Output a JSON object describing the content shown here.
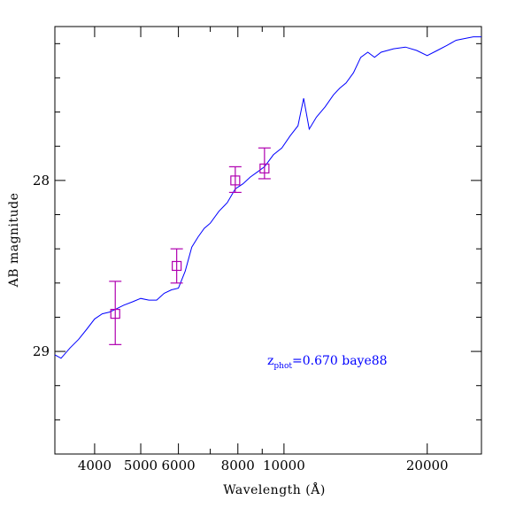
{
  "chart_data": {
    "type": "line",
    "xlabel": "Wavelength (Å)",
    "ylabel": "AB magnitude",
    "xscale": "log",
    "yaxis_inverted": true,
    "xlim": [
      3300,
      26000
    ],
    "ylim": [
      29.6,
      27.1
    ],
    "x_tick_labels": [
      "4000",
      "5000",
      "6000",
      "8000",
      "10000",
      "20000"
    ],
    "y_tick_labels": [
      "28",
      "29"
    ],
    "annotation": {
      "z_symbol": "z",
      "subscript": "phot",
      "text": "=0.670  baye88"
    },
    "grid": false,
    "legend": "none",
    "colors": {
      "template": "#0000ff",
      "photometry": "#b000b0",
      "axes": "#000000",
      "annotation": "#0000ff"
    },
    "series": [
      {
        "kind": "line",
        "x": [
          3300,
          3400,
          3550,
          3700,
          3850,
          4000,
          4150,
          4300,
          4450,
          4600,
          4800,
          5000,
          5200,
          5400,
          5600,
          5800,
          6000,
          6200,
          6400,
          6600,
          6800,
          7000,
          7300,
          7600,
          7900,
          8200,
          8500,
          8800,
          9100,
          9500,
          9900,
          10300,
          10700,
          11000,
          11300,
          11700,
          12200,
          12700,
          13100,
          13500,
          14000,
          14500,
          15000,
          15500,
          16000,
          17000,
          18000,
          19000,
          20000,
          21000,
          22000,
          23000,
          24000,
          25000,
          26000
        ],
        "y": [
          29.02,
          29.04,
          28.98,
          28.93,
          28.87,
          28.81,
          28.78,
          28.77,
          28.75,
          28.73,
          28.71,
          28.69,
          28.7,
          28.7,
          28.66,
          28.64,
          28.63,
          28.53,
          28.39,
          28.33,
          28.28,
          28.25,
          28.18,
          28.13,
          28.05,
          28.02,
          27.98,
          27.95,
          27.92,
          27.85,
          27.81,
          27.74,
          27.68,
          27.52,
          27.7,
          27.63,
          27.57,
          27.5,
          27.46,
          27.43,
          27.37,
          27.28,
          27.25,
          27.28,
          27.25,
          27.23,
          27.22,
          27.24,
          27.27,
          27.24,
          27.21,
          27.18,
          27.17,
          27.16,
          27.16
        ]
      },
      {
        "kind": "errorbar",
        "marker": "square",
        "x": [
          4420,
          5950,
          7900,
          9100
        ],
        "y": [
          28.78,
          28.5,
          28.0,
          27.93
        ],
        "yerr_low": [
          0.18,
          0.1,
          0.07,
          0.06
        ],
        "yerr_high": [
          0.19,
          0.1,
          0.08,
          0.12
        ]
      }
    ]
  }
}
